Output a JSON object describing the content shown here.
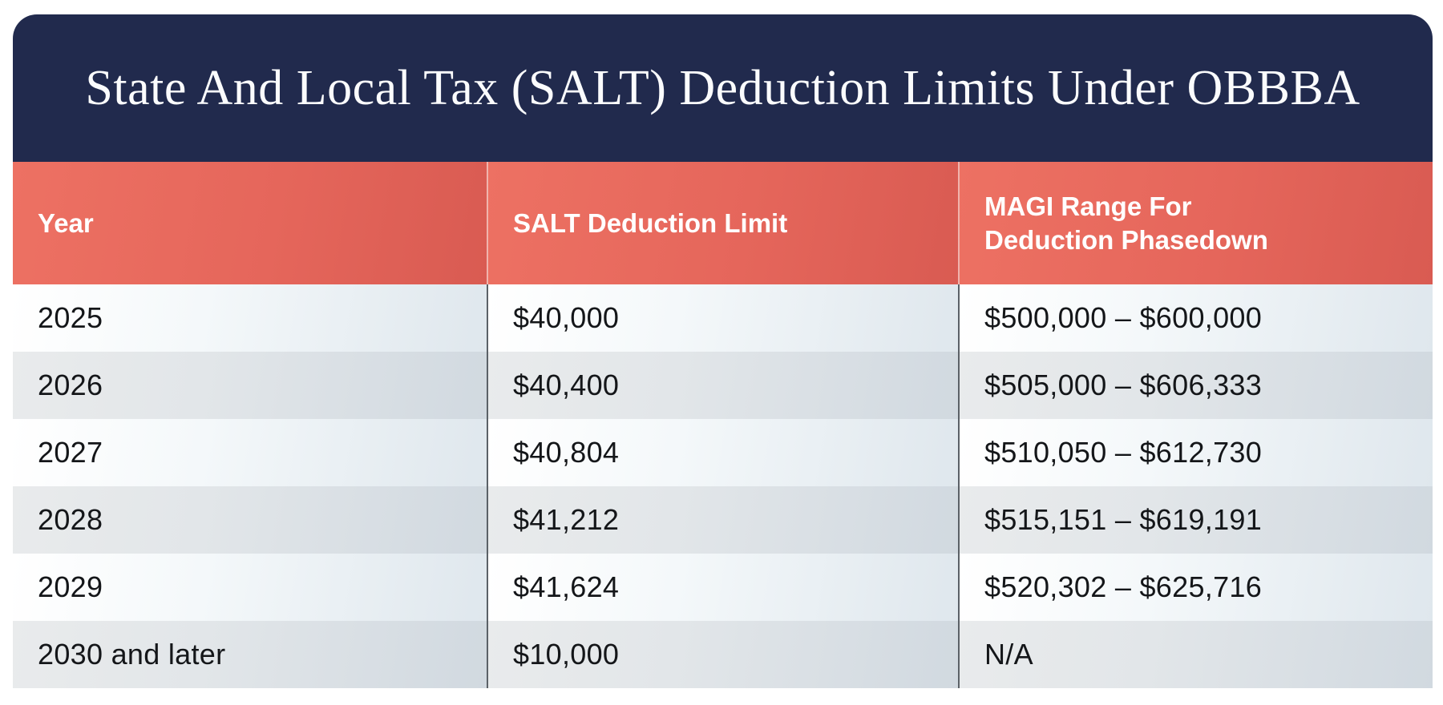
{
  "title": "State And Local Tax (SALT) Deduction Limits Under OBBBA",
  "chart_data": {
    "type": "table",
    "title": "State And Local Tax (SALT) Deduction Limits Under OBBBA",
    "columns": [
      "Year",
      "SALT Deduction Limit",
      "MAGI Range For Deduction Phasedown"
    ],
    "rows": [
      [
        "2025",
        "$40,000",
        "$500,000 – $600,000"
      ],
      [
        "2026",
        "$40,400",
        "$505,000 – $606,333"
      ],
      [
        "2027",
        "$40,804",
        "$510,050 – $612,730"
      ],
      [
        "2028",
        "$41,212",
        "$515,151 – $619,191"
      ],
      [
        "2029",
        "$41,624",
        "$520,302 – $625,716"
      ],
      [
        "2030 and later",
        "$10,000",
        "N/A"
      ]
    ],
    "layout_hints": {
      "striped_rows": true,
      "column_dividers": true,
      "header_text_color": "#ffffff",
      "body_text_color": "#141619"
    }
  },
  "colors": {
    "title_band": "#212a4d",
    "header_band_coral": "#e5665b",
    "divider_dark": "#5b6167",
    "divider_light_on_coral": "#f2ddd9",
    "row_odd_gradient_end": "#dfe7ed",
    "row_even_gradient_end": "#d1d9e0",
    "page_background": "#ffffff"
  }
}
